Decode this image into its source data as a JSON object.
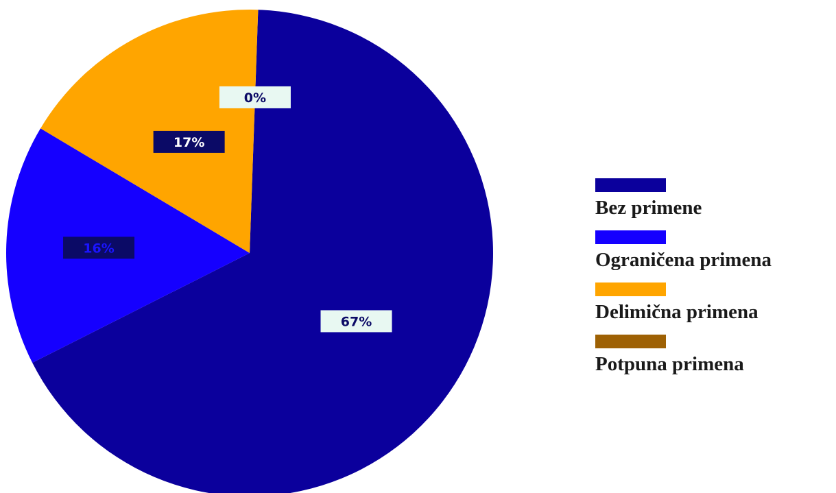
{
  "chart_data": {
    "type": "pie",
    "categories": [
      "Bez primene",
      "Ograničena primena",
      "Delimična primena",
      "Potpuna primena"
    ],
    "values": [
      67,
      16,
      17,
      0
    ],
    "value_labels": [
      "67%",
      "16%",
      "17%",
      "0%"
    ],
    "colors": [
      "#0b009c",
      "#1500ff",
      "#ffa500",
      "#9e6104"
    ],
    "label_styles": [
      {
        "bg": "#e8f8f2",
        "fg": "#0b0a66"
      },
      {
        "bg": "#0b0a66",
        "fg": "#1a14ff"
      },
      {
        "bg": "#0b0a66",
        "fg": "#ffffff"
      },
      {
        "bg": "#e8f8f2",
        "fg": "#0b0a66"
      }
    ],
    "start_angle_deg": 2,
    "legend_position": "right"
  }
}
